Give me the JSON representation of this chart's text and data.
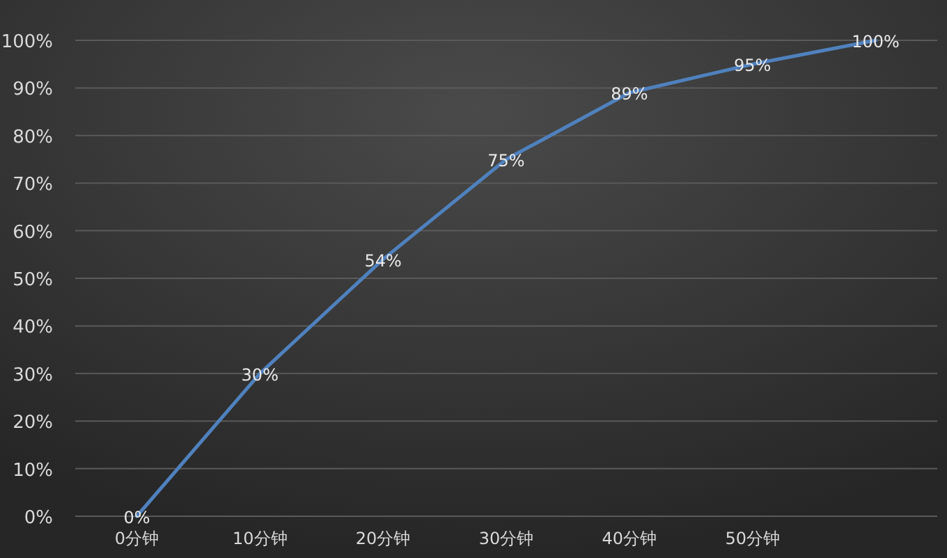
{
  "chart_data": {
    "type": "line",
    "categories": [
      "0分钟",
      "10分钟",
      "20分钟",
      "30分钟",
      "40分钟",
      "50分钟",
      null
    ],
    "values": [
      0,
      30,
      54,
      75,
      89,
      95,
      100
    ],
    "color": "#4f81bd",
    "data_labels": true,
    "value_labels": [
      "0%",
      "30%",
      "54%",
      "75%",
      "89%",
      "95%",
      "100%"
    ],
    "ylim": [
      0,
      100
    ],
    "yticks": [
      {
        "value": 0,
        "label": "0%"
      },
      {
        "value": 10,
        "label": "10%"
      },
      {
        "value": 20,
        "label": "20%"
      },
      {
        "value": 30,
        "label": "30%"
      },
      {
        "value": 40,
        "label": "40%"
      },
      {
        "value": 50,
        "label": "50%"
      },
      {
        "value": 60,
        "label": "60%"
      },
      {
        "value": 70,
        "label": "70%"
      },
      {
        "value": 80,
        "label": "80%"
      },
      {
        "value": 90,
        "label": "90%"
      },
      {
        "value": 100,
        "label": "100%"
      }
    ],
    "grid": "y"
  }
}
